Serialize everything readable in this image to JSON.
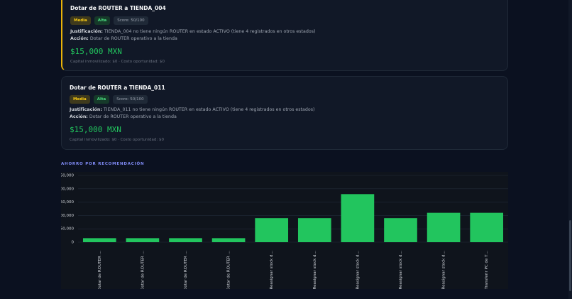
{
  "cards": [
    {
      "title": "Dotar de ROUTER a TIENDA_004",
      "badges": [
        "Media",
        "Alta",
        "Score: 50/100"
      ],
      "justification_label": "Justificación:",
      "justification": "TIENDA_004 no tiene ningún ROUTER en estado ACTIVO (tiene 4 registrados en otros estados)",
      "action_label": "Acción:",
      "action": "Dotar de ROUTER operativo a la tienda",
      "amount": "$15,000 MXN",
      "footer": "Capital inmovilizado: $0 · Costo oportunidad: $0"
    },
    {
      "title": "Dotar de ROUTER a TIENDA_011",
      "badges": [
        "Media",
        "Alta",
        "Score: 50/100"
      ],
      "justification_label": "Justificación:",
      "justification": "TIENDA_011 no tiene ningún ROUTER en estado ACTIVO (tiene 4 registrados en otros estados)",
      "action_label": "Acción:",
      "action": "Dotar de ROUTER operativo a la tienda",
      "amount": "$15,000 MXN",
      "footer": "Capital inmovilizado: $0 · Costo oportunidad: $0"
    }
  ],
  "section_title": "AHORRO POR RECOMENDACIÓN",
  "chart_data": {
    "type": "bar",
    "categories": [
      "Dotar de ROUTER …",
      "Dotar de ROUTER …",
      "Dotar de ROUTER …",
      "Dotar de ROUTER …",
      "Reasignar stock d…",
      "Reasignar stock d…",
      "Reasignar stock d…",
      "Reasignar stock d…",
      "Reasignar stock d…",
      "Transferir PC de T…"
    ],
    "values": [
      15000,
      15000,
      15000,
      15000,
      90000,
      90000,
      180000,
      90000,
      110000,
      110000
    ],
    "color": "#22c55e",
    "ylim": [
      0,
      250000
    ],
    "yticks": [
      0,
      {
        "value": 50000,
        "label": "50,000"
      },
      {
        "value": 100000,
        "label": "100,000"
      },
      {
        "value": 150000,
        "label": "150,000"
      },
      {
        "value": 200000,
        "label": "200,000"
      },
      {
        "value": 250000,
        "label": "250,000"
      }
    ],
    "grid": true
  }
}
